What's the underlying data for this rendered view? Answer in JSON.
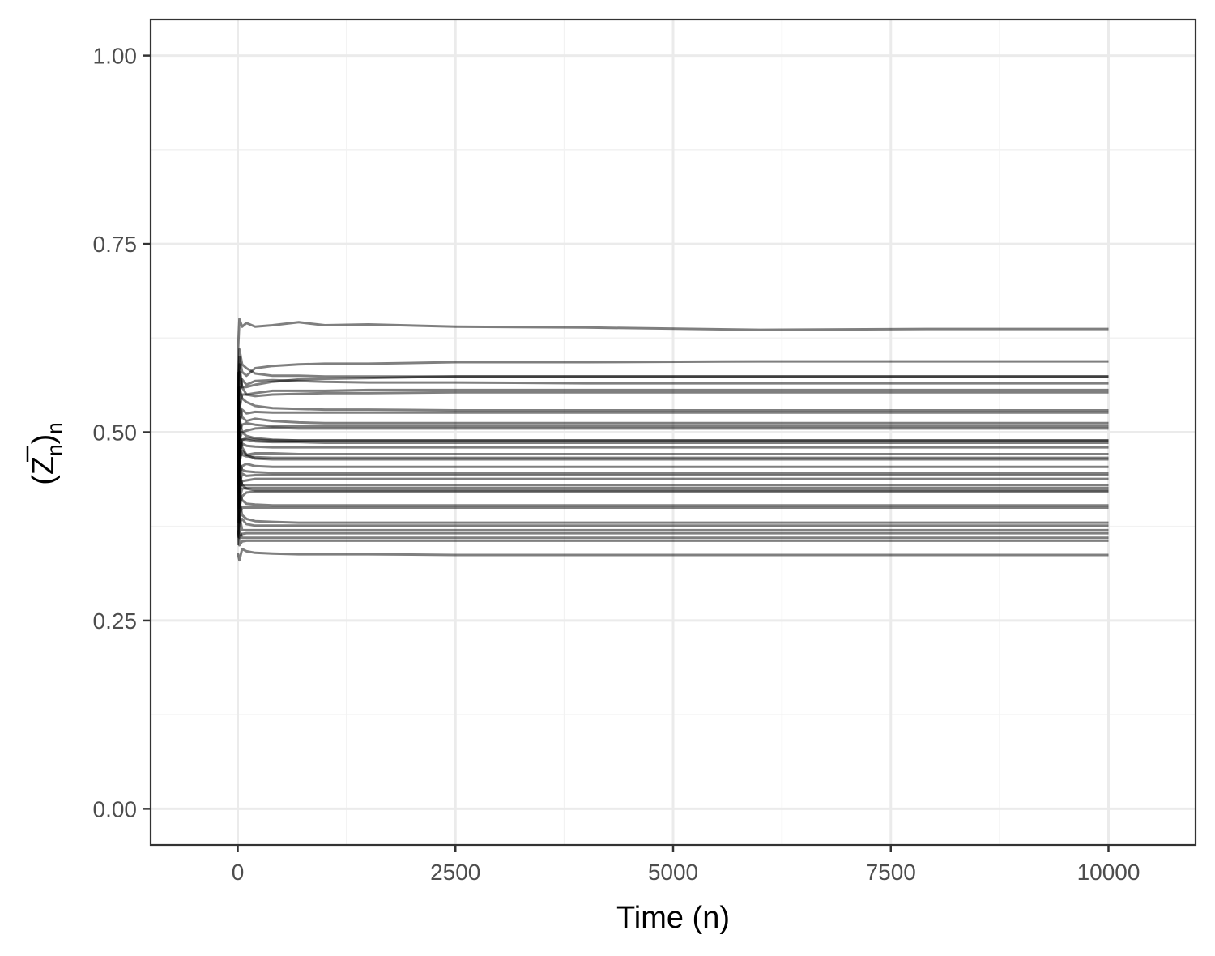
{
  "chart_data": {
    "type": "line",
    "xlabel": "Time (n)",
    "ylabel": "(Z̄n)n",
    "ylabel_parts": {
      "open": "(",
      "symbol": "Z",
      "sub1": "n",
      "close": ")",
      "sub2": "n"
    },
    "xlim": [
      -1000,
      11000
    ],
    "ylim": [
      -0.048,
      1.048
    ],
    "x_ticks": [
      0,
      2500,
      5000,
      7500,
      10000
    ],
    "x_tick_labels": [
      "0",
      "2500",
      "5000",
      "7500",
      "10000"
    ],
    "y_ticks": [
      0.0,
      0.25,
      0.5,
      0.75,
      1.0
    ],
    "y_tick_labels": [
      "0.00",
      "0.25",
      "0.50",
      "0.75",
      "1.00"
    ],
    "grid": true,
    "legend": "none",
    "line_color": "#000000",
    "line_opacity": 0.5,
    "x": [
      0,
      20,
      50,
      100,
      200,
      400,
      700,
      1000,
      1500,
      2500,
      4000,
      6000,
      8000,
      10000
    ],
    "series": [
      {
        "values": [
          0.6,
          0.65,
          0.64,
          0.645,
          0.64,
          0.642,
          0.646,
          0.642,
          0.643,
          0.64,
          0.639,
          0.636,
          0.637,
          0.637
        ]
      },
      {
        "values": [
          0.55,
          0.6,
          0.58,
          0.575,
          0.585,
          0.588,
          0.59,
          0.591,
          0.591,
          0.593,
          0.593,
          0.594,
          0.594,
          0.594
        ]
      },
      {
        "values": [
          0.52,
          0.59,
          0.56,
          0.56,
          0.563,
          0.567,
          0.57,
          0.571,
          0.572,
          0.574,
          0.574,
          0.574,
          0.574,
          0.574
        ]
      },
      {
        "values": [
          0.48,
          0.55,
          0.57,
          0.563,
          0.568,
          0.569,
          0.568,
          0.567,
          0.566,
          0.566,
          0.565,
          0.565,
          0.565,
          0.565
        ]
      },
      {
        "values": [
          0.5,
          0.58,
          0.56,
          0.55,
          0.552,
          0.555,
          0.555,
          0.555,
          0.556,
          0.556,
          0.556,
          0.556,
          0.556,
          0.556
        ]
      },
      {
        "values": [
          0.47,
          0.53,
          0.55,
          0.55,
          0.548,
          0.55,
          0.551,
          0.552,
          0.552,
          0.553,
          0.553,
          0.553,
          0.553,
          0.553
        ]
      },
      {
        "values": [
          0.52,
          0.56,
          0.545,
          0.54,
          0.535,
          0.532,
          0.531,
          0.53,
          0.53,
          0.529,
          0.529,
          0.529,
          0.529,
          0.529
        ]
      },
      {
        "values": [
          0.46,
          0.51,
          0.53,
          0.525,
          0.527,
          0.526,
          0.526,
          0.526,
          0.526,
          0.526,
          0.526,
          0.526,
          0.526,
          0.526
        ]
      },
      {
        "values": [
          0.5,
          0.54,
          0.52,
          0.515,
          0.518,
          0.515,
          0.513,
          0.512,
          0.512,
          0.512,
          0.512,
          0.512,
          0.512,
          0.512
        ]
      },
      {
        "values": [
          0.54,
          0.5,
          0.51,
          0.512,
          0.51,
          0.508,
          0.508,
          0.508,
          0.508,
          0.508,
          0.508,
          0.508,
          0.508,
          0.508
        ]
      },
      {
        "values": [
          0.45,
          0.52,
          0.5,
          0.502,
          0.505,
          0.506,
          0.505,
          0.505,
          0.505,
          0.505,
          0.505,
          0.505,
          0.505,
          0.505
        ]
      },
      {
        "values": [
          0.55,
          0.49,
          0.5,
          0.495,
          0.492,
          0.49,
          0.489,
          0.489,
          0.489,
          0.489,
          0.489,
          0.489,
          0.489,
          0.489
        ]
      },
      {
        "values": [
          0.42,
          0.48,
          0.49,
          0.49,
          0.488,
          0.487,
          0.487,
          0.486,
          0.486,
          0.486,
          0.486,
          0.486,
          0.486,
          0.486
        ]
      },
      {
        "values": [
          0.53,
          0.47,
          0.485,
          0.482,
          0.481,
          0.48,
          0.48,
          0.48,
          0.48,
          0.48,
          0.48,
          0.48,
          0.48,
          0.48
        ]
      },
      {
        "values": [
          0.44,
          0.5,
          0.48,
          0.47,
          0.472,
          0.472,
          0.471,
          0.471,
          0.471,
          0.471,
          0.471,
          0.471,
          0.471,
          0.471
        ]
      },
      {
        "values": [
          0.56,
          0.48,
          0.47,
          0.468,
          0.467,
          0.466,
          0.466,
          0.466,
          0.466,
          0.466,
          0.466,
          0.466,
          0.466,
          0.466
        ]
      },
      {
        "values": [
          0.4,
          0.46,
          0.475,
          0.47,
          0.465,
          0.464,
          0.464,
          0.464,
          0.464,
          0.464,
          0.464,
          0.464,
          0.464,
          0.464
        ]
      },
      {
        "values": [
          0.5,
          0.44,
          0.455,
          0.458,
          0.455,
          0.454,
          0.454,
          0.454,
          0.454,
          0.454,
          0.454,
          0.454,
          0.454,
          0.454
        ]
      },
      {
        "values": [
          0.6,
          0.46,
          0.45,
          0.448,
          0.447,
          0.446,
          0.446,
          0.446,
          0.446,
          0.446,
          0.446,
          0.446,
          0.446,
          0.446
        ]
      },
      {
        "values": [
          0.38,
          0.43,
          0.445,
          0.442,
          0.443,
          0.443,
          0.443,
          0.443,
          0.443,
          0.443,
          0.443,
          0.443,
          0.443,
          0.443
        ]
      },
      {
        "values": [
          0.47,
          0.42,
          0.435,
          0.436,
          0.438,
          0.438,
          0.438,
          0.438,
          0.438,
          0.438,
          0.438,
          0.438,
          0.438,
          0.438
        ]
      },
      {
        "values": [
          0.52,
          0.44,
          0.43,
          0.43,
          0.43,
          0.43,
          0.43,
          0.43,
          0.43,
          0.43,
          0.43,
          0.43,
          0.43,
          0.43
        ]
      },
      {
        "values": [
          0.36,
          0.41,
          0.425,
          0.426,
          0.426,
          0.426,
          0.426,
          0.426,
          0.426,
          0.426,
          0.426,
          0.426,
          0.426,
          0.426
        ]
      },
      {
        "values": [
          0.58,
          0.45,
          0.43,
          0.425,
          0.423,
          0.423,
          0.423,
          0.423,
          0.423,
          0.423,
          0.423,
          0.423,
          0.423,
          0.423
        ]
      },
      {
        "values": [
          0.44,
          0.4,
          0.415,
          0.42,
          0.421,
          0.421,
          0.421,
          0.421,
          0.421,
          0.421,
          0.421,
          0.421,
          0.421,
          0.421
        ]
      },
      {
        "values": [
          0.5,
          0.42,
          0.41,
          0.405,
          0.404,
          0.403,
          0.403,
          0.403,
          0.403,
          0.403,
          0.403,
          0.403,
          0.403,
          0.403
        ]
      },
      {
        "values": [
          0.35,
          0.39,
          0.4,
          0.4,
          0.4,
          0.4,
          0.4,
          0.4,
          0.4,
          0.4,
          0.4,
          0.4,
          0.4,
          0.4
        ]
      },
      {
        "values": [
          0.48,
          0.41,
          0.39,
          0.385,
          0.382,
          0.381,
          0.38,
          0.38,
          0.38,
          0.38,
          0.38,
          0.38,
          0.38,
          0.38
        ]
      },
      {
        "values": [
          0.42,
          0.38,
          0.385,
          0.378,
          0.376,
          0.376,
          0.376,
          0.376,
          0.376,
          0.376,
          0.376,
          0.376,
          0.376,
          0.376
        ]
      },
      {
        "values": [
          0.55,
          0.39,
          0.37,
          0.37,
          0.37,
          0.37,
          0.37,
          0.37,
          0.37,
          0.37,
          0.37,
          0.37,
          0.37,
          0.37
        ]
      },
      {
        "values": [
          0.37,
          0.36,
          0.365,
          0.366,
          0.366,
          0.366,
          0.366,
          0.366,
          0.366,
          0.366,
          0.366,
          0.366,
          0.366,
          0.366
        ]
      },
      {
        "values": [
          0.45,
          0.37,
          0.36,
          0.36,
          0.36,
          0.36,
          0.36,
          0.36,
          0.36,
          0.36,
          0.36,
          0.36,
          0.36,
          0.36
        ]
      },
      {
        "values": [
          0.4,
          0.35,
          0.355,
          0.356,
          0.356,
          0.356,
          0.356,
          0.356,
          0.356,
          0.356,
          0.356,
          0.356,
          0.356,
          0.356
        ]
      },
      {
        "values": [
          0.34,
          0.33,
          0.345,
          0.342,
          0.34,
          0.339,
          0.338,
          0.338,
          0.338,
          0.337,
          0.337,
          0.337,
          0.337,
          0.337
        ]
      },
      {
        "values": [
          0.5,
          0.61,
          0.59,
          0.585,
          0.578,
          0.575,
          0.575,
          0.574,
          0.574,
          0.574,
          0.574,
          0.574,
          0.574,
          0.574
        ]
      },
      {
        "values": [
          0.43,
          0.47,
          0.49,
          0.492,
          0.49,
          0.489,
          0.489,
          0.489,
          0.489,
          0.489,
          0.489,
          0.489,
          0.489,
          0.489
        ]
      }
    ]
  }
}
